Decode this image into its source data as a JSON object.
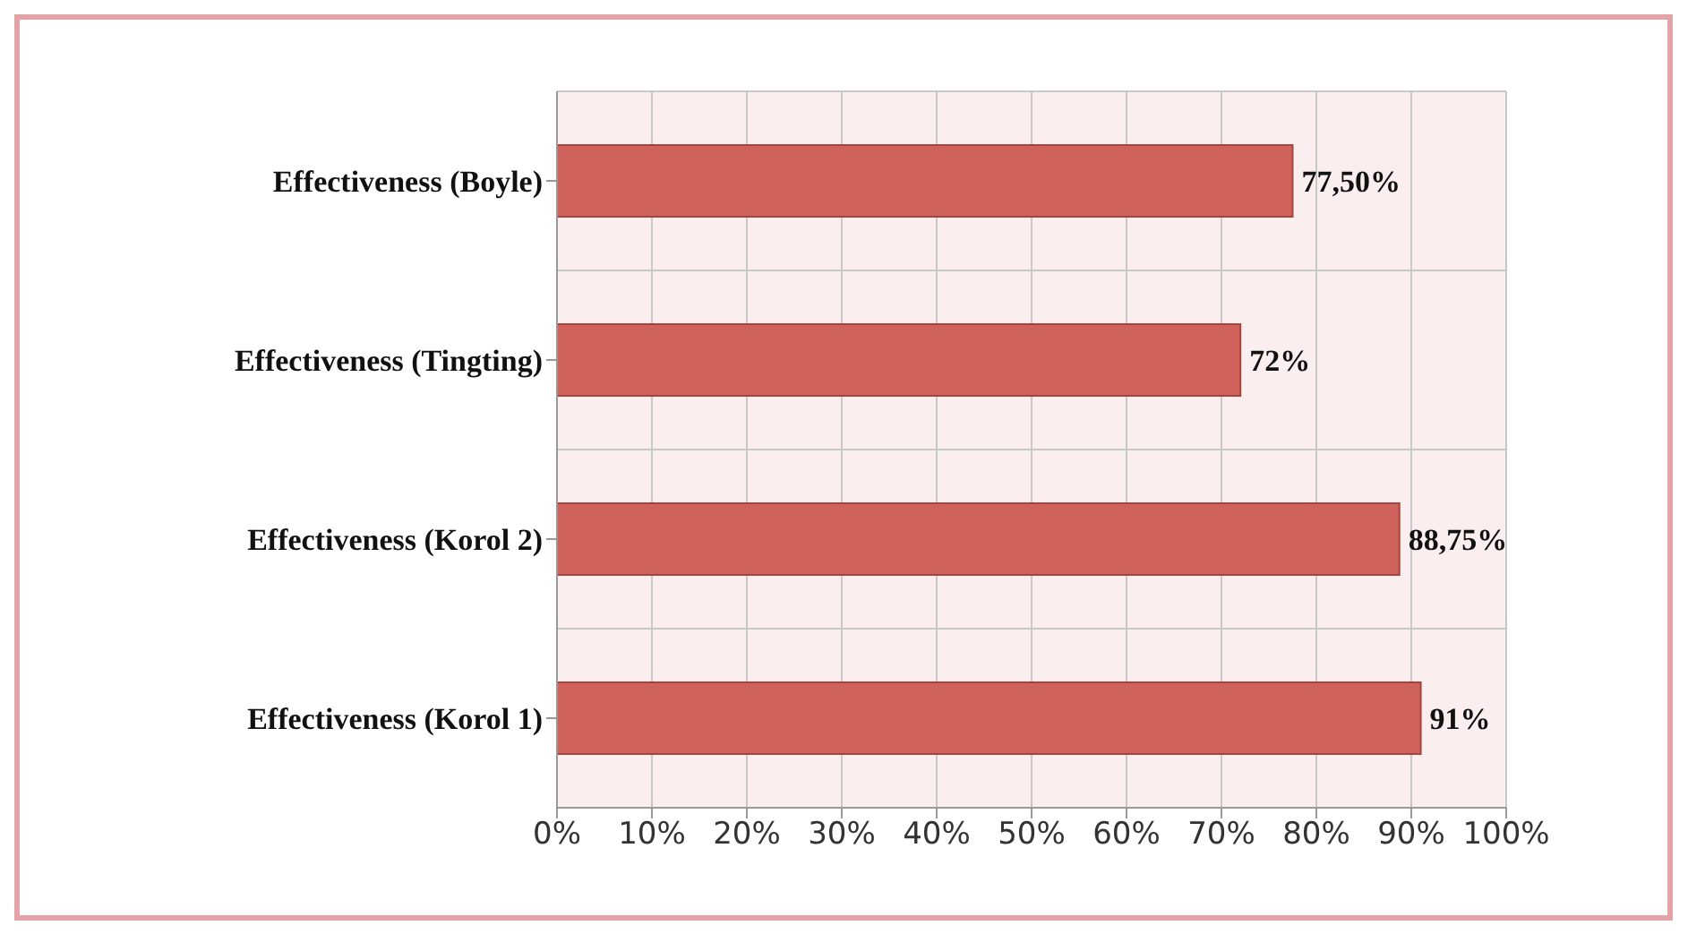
{
  "chart_data": {
    "type": "bar",
    "orientation": "horizontal",
    "categories": [
      "Effectiveness (Boyle)",
      "Effectiveness (Tingting)",
      "Effectiveness (Korol 2)",
      "Effectiveness (Korol 1)"
    ],
    "values": [
      77.5,
      72,
      88.75,
      91
    ],
    "value_labels": [
      "77,50%",
      "72%",
      "88,75%",
      "91%"
    ],
    "color": "#d0625c",
    "xlim": [
      0,
      100
    ],
    "xticks": [
      {
        "value": 0,
        "label": "0%"
      },
      {
        "value": 10,
        "label": "10%"
      },
      {
        "value": 20,
        "label": "20%"
      },
      {
        "value": 30,
        "label": "30%"
      },
      {
        "value": 40,
        "label": "40%"
      },
      {
        "value": 50,
        "label": "50%"
      },
      {
        "value": 60,
        "label": "60%"
      },
      {
        "value": 70,
        "label": "70%"
      },
      {
        "value": 80,
        "label": "80%"
      },
      {
        "value": 90,
        "label": "90%"
      },
      {
        "value": 100,
        "label": "100%"
      }
    ],
    "grid": true,
    "legend": false
  }
}
